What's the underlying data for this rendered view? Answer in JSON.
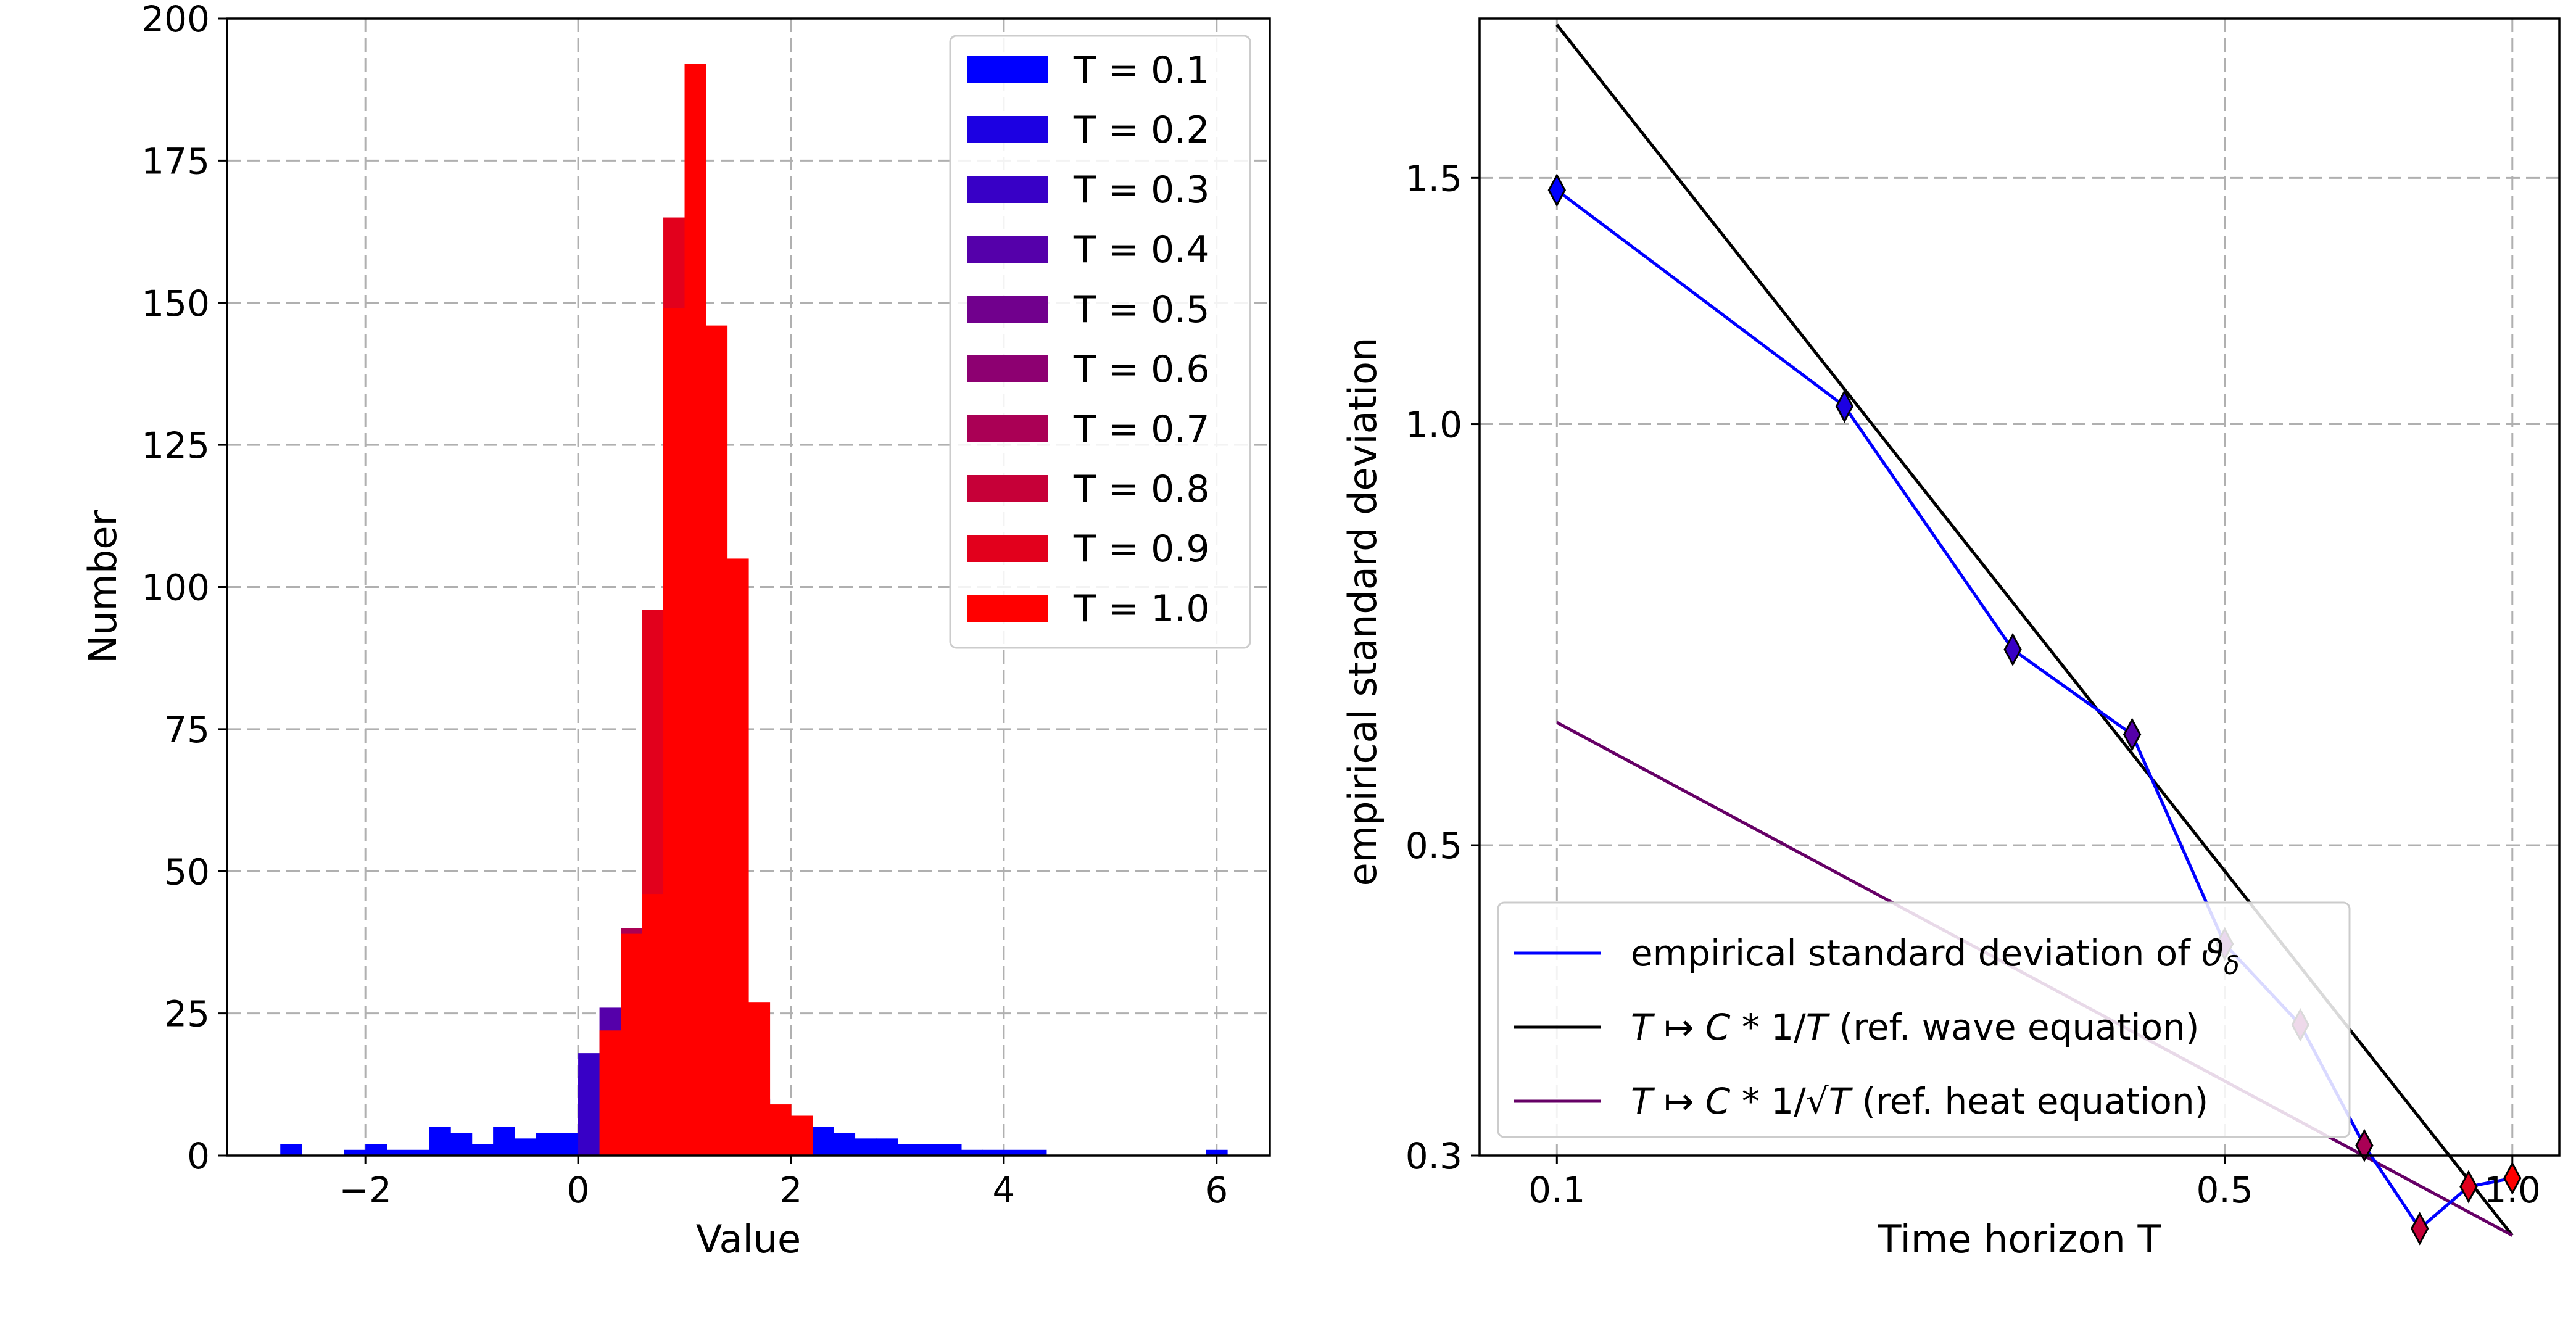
{
  "chart_data": [
    {
      "type": "bar",
      "subtype": "overlaid-histogram",
      "xlabel": "Value",
      "ylabel": "Number",
      "xlim": [
        -3.3,
        6.5
      ],
      "ylim": [
        0,
        200
      ],
      "xticks": [
        -2,
        0,
        2,
        4,
        6
      ],
      "xtick_labels": [
        "−2",
        "0",
        "2",
        "4",
        "6"
      ],
      "yticks": [
        0,
        25,
        50,
        75,
        100,
        125,
        150,
        175,
        200
      ],
      "ytick_labels": [
        "0",
        "25",
        "50",
        "75",
        "100",
        "125",
        "150",
        "175",
        "200"
      ],
      "grid": true,
      "legend_position": "top-right",
      "bin_width": 0.2,
      "series": [
        {
          "name": "T = 0.1",
          "color": "#0000ff",
          "x": [
            -2.8,
            -2.2,
            -2.0,
            -1.8,
            -1.6,
            -1.4,
            -1.2,
            -1.0,
            -0.8,
            -0.6,
            -0.4,
            -0.2,
            0.0,
            0.2,
            0.4,
            0.6,
            0.8,
            1.0,
            1.2,
            1.4,
            1.6,
            1.8,
            2.0,
            2.2,
            2.4,
            2.6,
            2.8,
            3.0,
            3.2,
            3.4,
            3.6,
            3.8,
            4.0,
            4.2,
            5.9
          ],
          "values": [
            2,
            1,
            2,
            1,
            1,
            5,
            4,
            2,
            5,
            3,
            4,
            4,
            11,
            9,
            10,
            14,
            21,
            27,
            20,
            12,
            10,
            7,
            6,
            5,
            4,
            3,
            3,
            2,
            2,
            2,
            1,
            1,
            1,
            1,
            1
          ]
        },
        {
          "name": "T = 0.2",
          "color": "#1c00e2",
          "x": [
            0.0,
            0.2,
            0.4,
            0.6,
            0.8,
            1.0,
            1.2,
            1.4,
            1.6
          ],
          "values": [
            14,
            18,
            22,
            32,
            38,
            30,
            22,
            16,
            8
          ]
        },
        {
          "name": "T = 0.3",
          "color": "#3800c6",
          "x": [
            0.0,
            0.2,
            0.4,
            0.6,
            0.8,
            1.0,
            1.2,
            1.4
          ],
          "values": [
            18,
            22,
            30,
            40,
            48,
            36,
            24,
            14
          ]
        },
        {
          "name": "T = 0.4",
          "color": "#5500aa",
          "x": [
            0.2,
            0.4,
            0.6,
            0.8,
            1.0,
            1.2,
            1.4
          ],
          "values": [
            26,
            34,
            48,
            58,
            46,
            32,
            18
          ]
        },
        {
          "name": "T = 0.5",
          "color": "#71008d",
          "x": [
            0.4,
            0.6,
            0.8,
            1.0,
            1.2
          ],
          "values": [
            38,
            58,
            72,
            58,
            40
          ]
        },
        {
          "name": "T = 0.6",
          "color": "#8d0071",
          "x": [
            0.4,
            0.6,
            0.8,
            1.0,
            1.2
          ],
          "values": [
            36,
            66,
            95,
            78,
            48
          ]
        },
        {
          "name": "T = 0.7",
          "color": "#aa0055",
          "x": [
            0.4,
            0.6,
            0.8,
            1.0,
            1.2
          ],
          "values": [
            40,
            82,
            118,
            96,
            52
          ]
        },
        {
          "name": "T = 0.8",
          "color": "#c60038",
          "x": [
            0.4,
            0.6,
            0.8,
            1.0,
            1.2
          ],
          "values": [
            38,
            90,
            140,
            120,
            58
          ]
        },
        {
          "name": "T = 0.9",
          "color": "#e2001c",
          "x": [
            0.6,
            0.8,
            1.0
          ],
          "values": [
            96,
            165,
            140
          ]
        },
        {
          "name": "T = 1.0",
          "color": "#ff0000",
          "x": [
            0.2,
            0.4,
            0.6,
            0.8,
            1.0,
            1.2,
            1.4,
            1.6,
            1.8,
            2.0
          ],
          "values": [
            22,
            39,
            46,
            149,
            192,
            146,
            105,
            27,
            9,
            7
          ]
        }
      ]
    },
    {
      "type": "line",
      "scale": "log-log",
      "xlabel": "Time horizon T",
      "ylabel": "empirical standard deviation",
      "xlim": [
        0.083,
        1.12
      ],
      "ylim": [
        0.3,
        1.95
      ],
      "xticks": [
        0.1,
        0.5,
        1.0
      ],
      "xtick_labels": [
        "0.1",
        "0.5",
        "1.0"
      ],
      "yticks": [
        0.3,
        0.5,
        1.0,
        1.5
      ],
      "ytick_labels": [
        "0.3",
        "0.5",
        "1.0",
        "1.5"
      ],
      "grid": true,
      "legend_position": "bottom-left",
      "series": [
        {
          "name": "empirical standard deviation of ϑ̂δ",
          "legend_prefix": "empirical standard deviation of ",
          "legend_symbol": "ϑ",
          "legend_subscript": "δ",
          "color": "#0000ff",
          "marker": "diamond",
          "x": [
            0.1,
            0.2,
            0.3,
            0.4,
            0.5,
            0.6,
            0.7,
            0.8,
            0.9,
            1.0
          ],
          "y": [
            1.47,
            1.03,
            0.69,
            0.6,
            0.425,
            0.372,
            0.305,
            0.266,
            0.285,
            0.289
          ],
          "marker_colors": [
            "#0000ff",
            "#1c00e2",
            "#3800c6",
            "#5500aa",
            "#71008d",
            "#8d0071",
            "#aa0055",
            "#c60038",
            "#e2001c",
            "#ff0000"
          ]
        },
        {
          "name": "T ↦ C * 1/T (ref. wave equation)",
          "legend_segments": [
            {
              "text": "T",
              "italic": true
            },
            {
              "text": " ↦ ",
              "italic": false
            },
            {
              "text": "C",
              "italic": true
            },
            {
              "text": " * 1/",
              "italic": false
            },
            {
              "text": "T",
              "italic": true
            },
            {
              "text": " (ref. wave equation)",
              "italic": false
            }
          ],
          "color": "#000000",
          "x": [
            0.1,
            1.0
          ],
          "y": [
            1.93,
            0.263
          ]
        },
        {
          "name": "T ↦ C * 1/√T (ref. heat equation)",
          "legend_segments": [
            {
              "text": "T",
              "italic": true
            },
            {
              "text": " ↦ ",
              "italic": false
            },
            {
              "text": "C",
              "italic": true
            },
            {
              "text": " * 1/√",
              "italic": false
            },
            {
              "text": "T",
              "italic": true
            },
            {
              "text": " (ref. heat equation)",
              "italic": false
            }
          ],
          "color": "#660066",
          "x": [
            0.1,
            1.0
          ],
          "y": [
            0.612,
            0.263
          ]
        }
      ]
    }
  ]
}
